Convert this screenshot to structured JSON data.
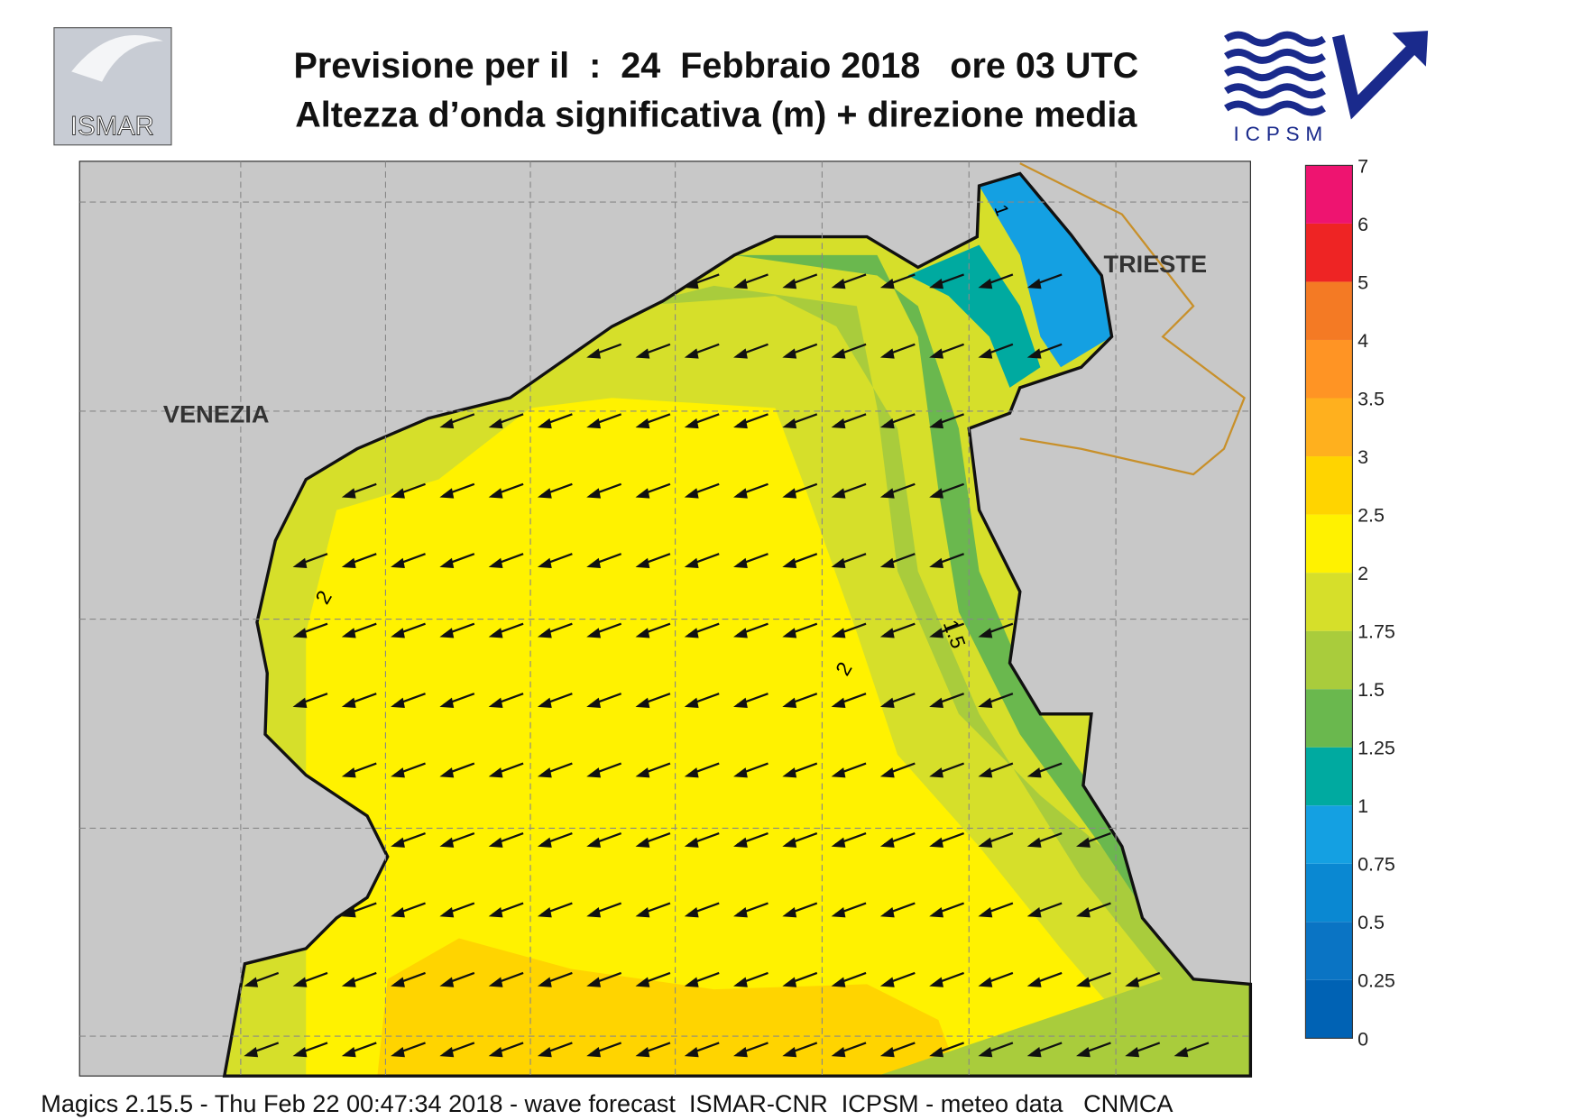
{
  "header": {
    "title_line1": "Previsione per il  :  24  Febbraio 2018   ore 03 UTC",
    "title_line2": "Altezza d’onda significativa (m) + direzione media",
    "logo_left": "ISMAR",
    "logo_right": "ICPSM"
  },
  "map": {
    "places": [
      "VENEZIA",
      "TRIESTE"
    ],
    "contour_labels": [
      "2",
      "2",
      "1.5",
      "1"
    ]
  },
  "legend": {
    "ticks": [
      0,
      0.25,
      0.5,
      0.75,
      1,
      1.25,
      1.5,
      1.75,
      2,
      2.5,
      3,
      3.5,
      4,
      5,
      6,
      7
    ],
    "colors": [
      "#0062b4",
      "#0a74c4",
      "#0a88d2",
      "#14a0e2",
      "#00aaa0",
      "#6ab84e",
      "#a9cc3c",
      "#d6df2a",
      "#fff200",
      "#ffd400",
      "#ffb01e",
      "#ff9424",
      "#f47a24",
      "#ee2424",
      "#ee1470"
    ]
  },
  "footer": "Magics 2.15.5 - Thu Feb 22 00:47:34 2018 - wave forecast  ISMAR-CNR  ICPSM - meteo data   CNMCA"
}
